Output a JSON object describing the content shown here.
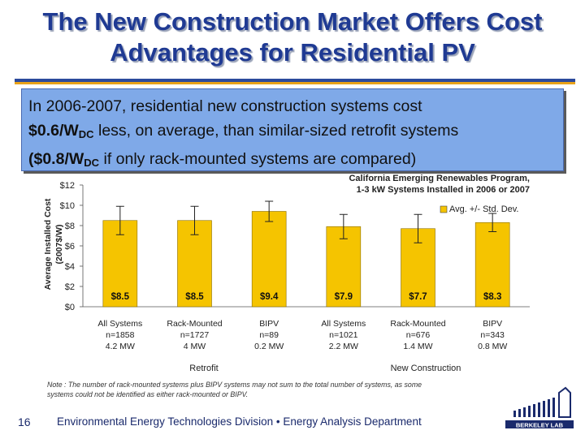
{
  "slide": {
    "title": "The New Construction Market Offers Cost Advantages for Residential PV",
    "callout": {
      "l1": "In 2006-2007, residential new construction systems cost",
      "v1": "$0.6/W",
      "sub1": "DC",
      "l2": " less, on average, than similar-sized retrofit systems",
      "v2open": "($0.8/W",
      "sub2": "DC",
      "l3": " if only rack-mounted systems are compared)"
    },
    "footer_page": "16",
    "footer_text": "Environmental Energy Technologies Division • Energy Analysis Department",
    "logo_text": "BERKELEY LAB"
  },
  "chart_data": {
    "type": "bar",
    "title": [
      "California Emerging Renewables Program,",
      "1-3 kW Systems Installed in 2006 or 2007"
    ],
    "ylabel": [
      "Average Installed Cost",
      "(2007$/W)"
    ],
    "ylim": [
      0,
      12
    ],
    "yticks": [
      "$0",
      "$2",
      "$4",
      "$6",
      "$8",
      "$10",
      "$12"
    ],
    "legend": "Avg. +/- Std. Dev.",
    "legend_position": "top-right",
    "bar_color": "#f5c400",
    "categories": [
      {
        "name": "All Systems",
        "n": "n=1858",
        "mw": "4.2 MW"
      },
      {
        "name": "Rack-Mounted",
        "n": "n=1727",
        "mw": "4 MW"
      },
      {
        "name": "BIPV",
        "n": "n=89",
        "mw": "0.2 MW"
      },
      {
        "name": "All Systems",
        "n": "n=1021",
        "mw": "2.2 MW"
      },
      {
        "name": "Rack-Mounted",
        "n": "n=676",
        "mw": "1.4 MW"
      },
      {
        "name": "BIPV",
        "n": "n=343",
        "mw": "0.8 MW"
      }
    ],
    "values": [
      8.5,
      8.5,
      9.4,
      7.9,
      7.7,
      8.3
    ],
    "value_labels": [
      "$8.5",
      "$8.5",
      "$9.4",
      "$7.9",
      "$7.7",
      "$8.3"
    ],
    "std_dev": [
      1.4,
      1.4,
      1.0,
      1.2,
      1.4,
      0.9
    ],
    "groups": [
      "Retrofit",
      "New Construction"
    ],
    "note": [
      "Note : The number of rack-mounted systems plus BIPV systems may not sum to the total number of systems, as some",
      "systems could not be identified as either rack-mounted or BIPV."
    ]
  }
}
